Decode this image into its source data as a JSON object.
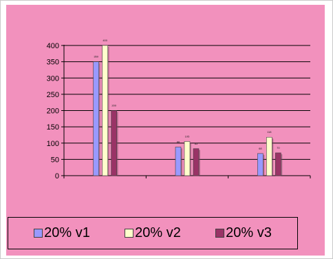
{
  "chart_data": {
    "type": "bar",
    "categories": [
      "",
      "",
      ""
    ],
    "series": [
      {
        "name": "20% v1",
        "values": [
          350,
          88,
          68
        ],
        "color": "#9999ff"
      },
      {
        "name": "20% v2",
        "values": [
          400,
          105,
          118
        ],
        "color": "#ffffcc"
      },
      {
        "name": "20% v3",
        "values": [
          200,
          83,
          70
        ],
        "color": "#993366"
      }
    ],
    "yticks": [
      "0",
      "50",
      "100",
      "150",
      "200",
      "250",
      "300",
      "350",
      "400"
    ],
    "ylim": [
      0,
      400
    ],
    "grid": true,
    "legend_position": "bottom",
    "data_labels_shown": true,
    "title": "",
    "xlabel": "",
    "ylabel": ""
  },
  "legend": [
    {
      "label": "20% v1",
      "color": "#9999ff"
    },
    {
      "label": "20% v2",
      "color": "#ffffcc"
    },
    {
      "label": "20% v3",
      "color": "#993366"
    }
  ]
}
